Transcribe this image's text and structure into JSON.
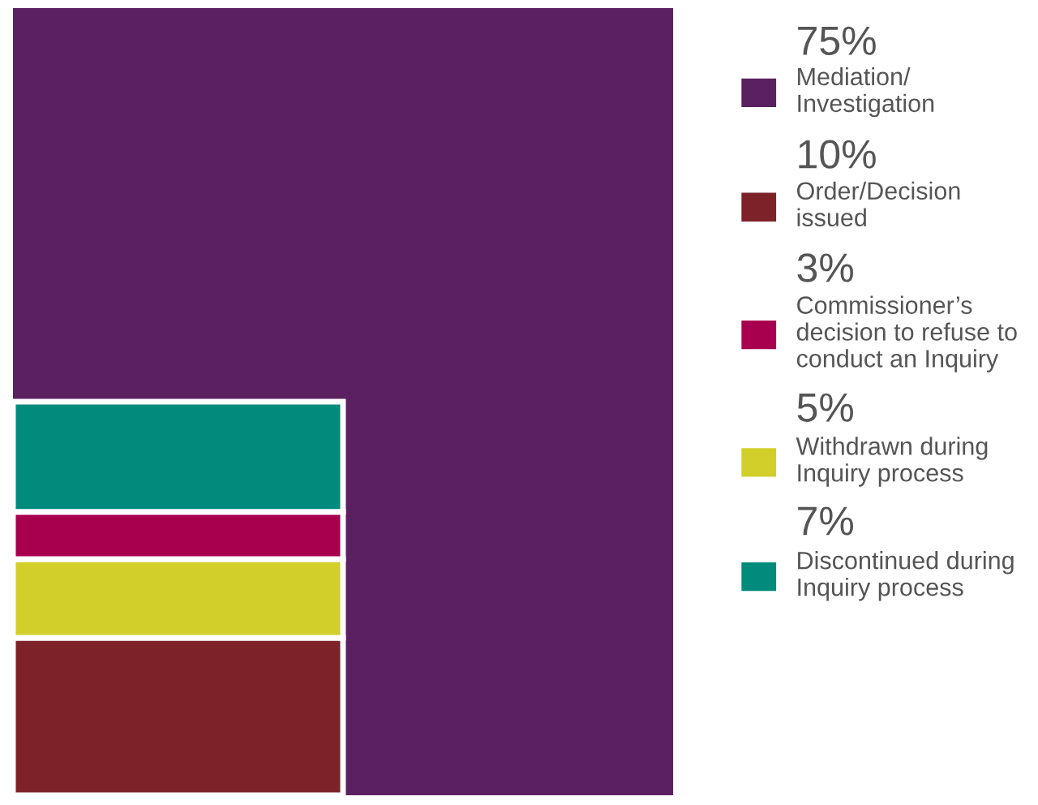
{
  "chart_data": {
    "type": "other",
    "categories": [
      "Mediation/\nInvestigation",
      "Order/Decision\nissued",
      "Commissioner’s\ndecision to refuse to\nconduct an Inquiry",
      "Withdrawn during\nInquiry process",
      "Discontinued during\nInquiry process"
    ],
    "values": [
      75,
      10,
      3,
      5,
      7
    ],
    "value_labels": [
      "75%",
      "10%",
      "3%",
      "5%",
      "7%"
    ],
    "colors": [
      "#5a2060",
      "#7d2229",
      "#a8004f",
      "#d2cf2b",
      "#008b7c"
    ]
  }
}
